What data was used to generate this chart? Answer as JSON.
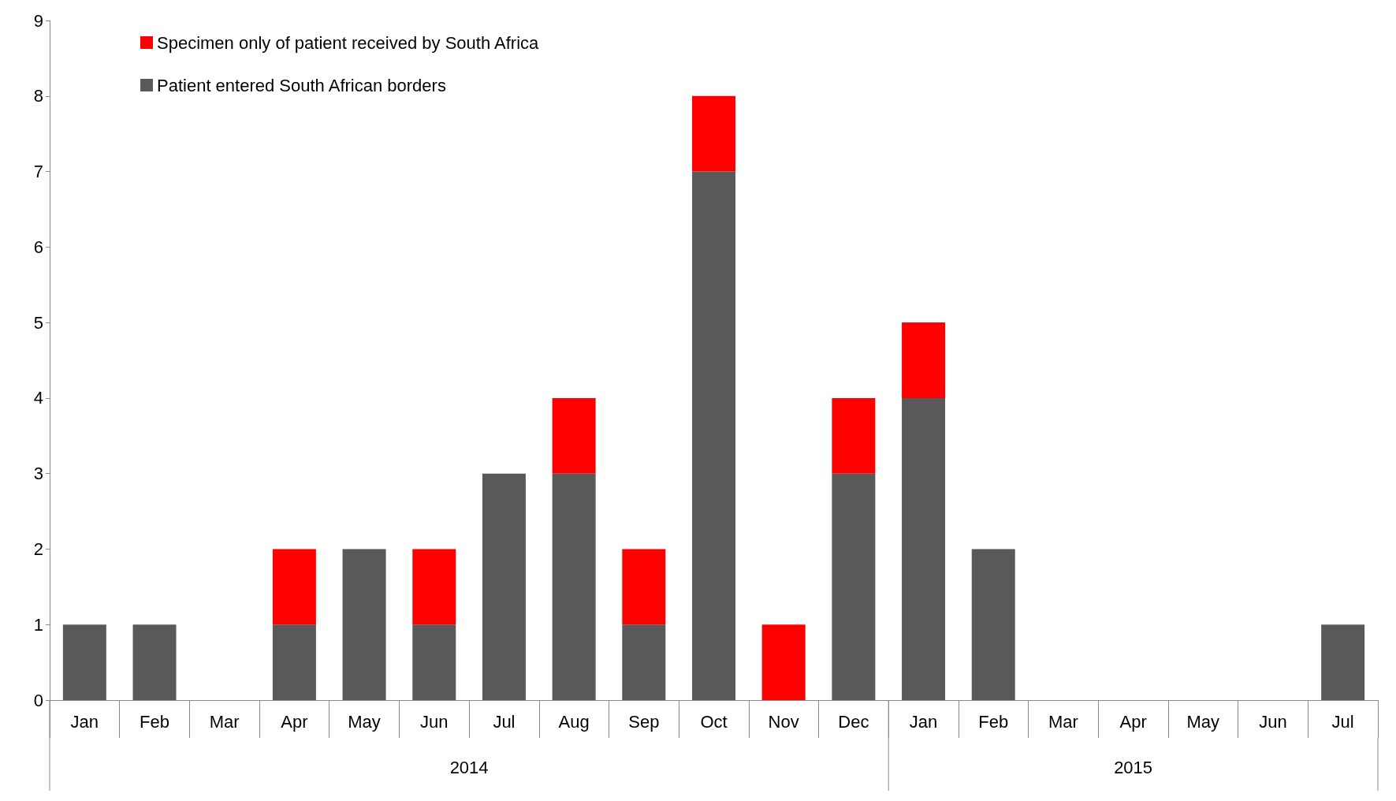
{
  "chart_data": {
    "type": "bar",
    "stacked": true,
    "categories": [
      "Jan",
      "Feb",
      "Mar",
      "Apr",
      "May",
      "Jun",
      "Jul",
      "Aug",
      "Sep",
      "Oct",
      "Nov",
      "Dec",
      "Jan",
      "Feb",
      "Mar",
      "Apr",
      "May",
      "Jun",
      "Jul"
    ],
    "series": [
      {
        "name": "Patient entered South African borders",
        "color": "#595959",
        "values": [
          1,
          1,
          0,
          1,
          2,
          1,
          3,
          3,
          1,
          7,
          0,
          3,
          4,
          2,
          0,
          0,
          0,
          0,
          1
        ]
      },
      {
        "name": "Specimen only of patient received by South Africa",
        "color": "#ff0000",
        "values": [
          0,
          0,
          0,
          1,
          0,
          1,
          0,
          1,
          1,
          1,
          1,
          1,
          1,
          0,
          0,
          0,
          0,
          0,
          0
        ]
      }
    ],
    "ylim": [
      0,
      9
    ],
    "yticks": [
      0,
      1,
      2,
      3,
      4,
      5,
      6,
      7,
      8,
      9
    ],
    "grid": false,
    "legend": "top left",
    "annotations": [
      "2014",
      "2015"
    ]
  }
}
